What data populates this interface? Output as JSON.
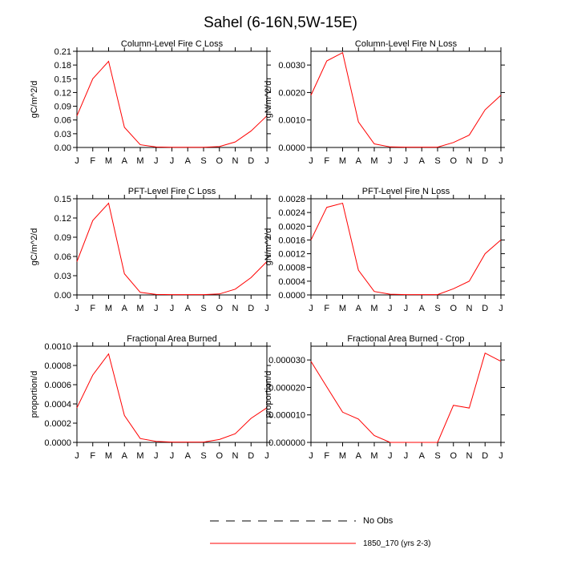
{
  "figure_title": "Sahel (6-16N,5W-15E)",
  "legend": {
    "placement": "bottom-center",
    "entries": [
      {
        "label": "No Obs",
        "color": "#000000",
        "style": "dashed"
      },
      {
        "label": "1850_170 (yrs 2-3)",
        "color": "#ff0000",
        "style": "solid"
      }
    ]
  },
  "chart_data": [
    {
      "type": "line",
      "title": "Column-Level Fire C Loss",
      "ylabel": "gC/m^2/d",
      "categories": [
        "J",
        "F",
        "M",
        "A",
        "M",
        "J",
        "J",
        "A",
        "S",
        "O",
        "N",
        "D",
        "J"
      ],
      "ylim": [
        0,
        0.21
      ],
      "yticks": [
        "0.00",
        "0.03",
        "0.06",
        "0.09",
        "0.12",
        "0.15",
        "0.18",
        "0.21"
      ],
      "series": [
        {
          "name": "1850_170 (yrs 2-3)",
          "color": "#ff0000",
          "values": [
            0.069,
            0.15,
            0.188,
            0.044,
            0.006,
            0.001,
            0.0005,
            0.0005,
            0.0005,
            0.002,
            0.012,
            0.036,
            0.069
          ]
        }
      ]
    },
    {
      "type": "line",
      "title": "Column-Level Fire N Loss",
      "ylabel": "gN/m^2/d",
      "categories": [
        "J",
        "F",
        "M",
        "A",
        "M",
        "J",
        "J",
        "A",
        "S",
        "O",
        "N",
        "D",
        "J"
      ],
      "ylim": [
        0,
        0.0035
      ],
      "yticks": [
        "0.0000",
        "0.0010",
        "0.0020",
        "0.0030"
      ],
      "series": [
        {
          "name": "1850_170 (yrs 2-3)",
          "color": "#ff0000",
          "values": [
            0.0019,
            0.00315,
            0.00345,
            0.00093,
            0.00013,
            2e-05,
            1e-05,
            1e-05,
            1e-05,
            0.00018,
            0.00045,
            0.00137,
            0.0019
          ]
        }
      ]
    },
    {
      "type": "line",
      "title": "PFT-Level Fire C Loss",
      "ylabel": "gC/m^2/d",
      "categories": [
        "J",
        "F",
        "M",
        "A",
        "M",
        "J",
        "J",
        "A",
        "S",
        "O",
        "N",
        "D",
        "J"
      ],
      "ylim": [
        0,
        0.15
      ],
      "yticks": [
        "0.00",
        "0.03",
        "0.06",
        "0.09",
        "0.12",
        "0.15"
      ],
      "series": [
        {
          "name": "1850_170 (yrs 2-3)",
          "color": "#ff0000",
          "values": [
            0.052,
            0.116,
            0.143,
            0.033,
            0.004,
            0.0008,
            0.0004,
            0.0004,
            0.0004,
            0.0015,
            0.009,
            0.027,
            0.052
          ]
        }
      ]
    },
    {
      "type": "line",
      "title": "PFT-Level Fire N Loss",
      "ylabel": "gN/m^2/d",
      "categories": [
        "J",
        "F",
        "M",
        "A",
        "M",
        "J",
        "J",
        "A",
        "S",
        "O",
        "N",
        "D",
        "J"
      ],
      "ylim": [
        0,
        0.0028
      ],
      "yticks": [
        "0.0000",
        "0.0004",
        "0.0008",
        "0.0012",
        "0.0016",
        "0.0020",
        "0.0024",
        "0.0028"
      ],
      "series": [
        {
          "name": "1850_170 (yrs 2-3)",
          "color": "#ff0000",
          "values": [
            0.0016,
            0.00255,
            0.00267,
            0.00072,
            0.0001,
            2e-05,
            1e-05,
            1e-05,
            1e-05,
            0.00018,
            0.0004,
            0.0012,
            0.0016
          ]
        }
      ]
    },
    {
      "type": "line",
      "title": "Fractional Area Burned",
      "ylabel": "proportion/d",
      "categories": [
        "J",
        "F",
        "M",
        "A",
        "M",
        "J",
        "J",
        "A",
        "S",
        "O",
        "N",
        "D",
        "J"
      ],
      "ylim": [
        0,
        0.001
      ],
      "yticks": [
        "0.0000",
        "0.0002",
        "0.0004",
        "0.0006",
        "0.0008",
        "0.0010"
      ],
      "series": [
        {
          "name": "1850_170 (yrs 2-3)",
          "color": "#ff0000",
          "values": [
            0.00036,
            0.0007,
            0.00092,
            0.00028,
            4e-05,
            1e-05,
            3e-06,
            3e-06,
            3e-06,
            3e-05,
            9e-05,
            0.00025,
            0.00036
          ]
        }
      ]
    },
    {
      "type": "line",
      "title": "Fractional Area Burned - Crop",
      "ylabel": "proportion/d",
      "categories": [
        "J",
        "F",
        "M",
        "A",
        "M",
        "J",
        "J",
        "A",
        "S",
        "O",
        "N",
        "D",
        "J"
      ],
      "ylim": [
        0,
        3.5e-05
      ],
      "yticks": [
        "0.000000",
        "0.000010",
        "0.000020",
        "0.000030"
      ],
      "series": [
        {
          "name": "1850_170 (yrs 2-3)",
          "color": "#ff0000",
          "values": [
            2.95e-05,
            2.02e-05,
            1.1e-05,
            8.5e-06,
            2.5e-06,
            0.0,
            0.0,
            0.0,
            0.0,
            1.35e-05,
            1.25e-05,
            3.25e-05,
            2.95e-05
          ]
        }
      ]
    }
  ]
}
